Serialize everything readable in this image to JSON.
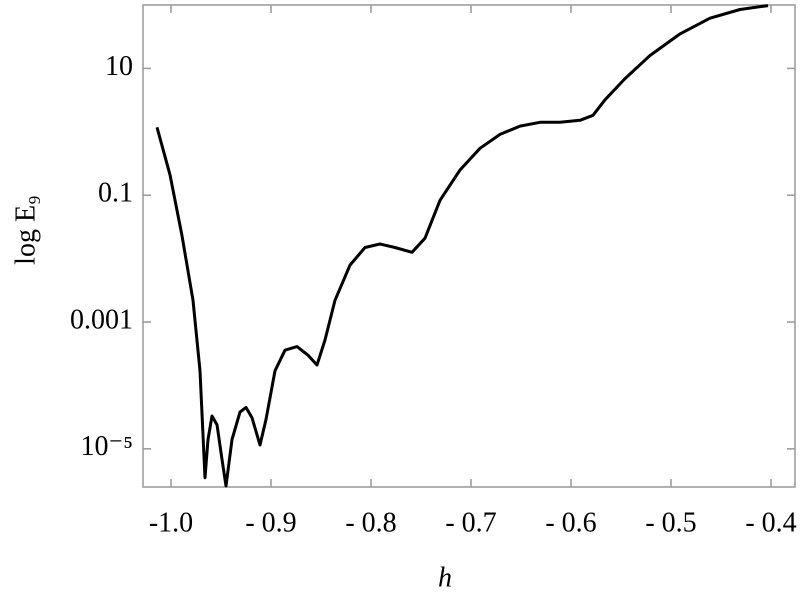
{
  "chart_data": {
    "type": "line",
    "xlabel": "h",
    "ylabel": "log E₉",
    "yscale": "log",
    "color": "#000000",
    "x": [
      -1.014,
      -1.001,
      -0.989,
      -0.978,
      -0.971,
      -0.966,
      -0.963,
      -0.959,
      -0.954,
      -0.949,
      -0.945,
      -0.939,
      -0.931,
      -0.925,
      -0.919,
      -0.911,
      -0.905,
      -0.896,
      -0.886,
      -0.874,
      -0.863,
      -0.854,
      -0.846,
      -0.836,
      -0.821,
      -0.806,
      -0.791,
      -0.776,
      -0.759,
      -0.746,
      -0.731,
      -0.711,
      -0.691,
      -0.671,
      -0.651,
      -0.631,
      -0.611,
      -0.591,
      -0.578,
      -0.566,
      -0.546,
      -0.521,
      -0.491,
      -0.461,
      -0.431,
      -0.403
    ],
    "values": [
      1.18,
      0.21,
      0.023,
      0.0022,
      0.00017,
      3.5e-06,
      1.4e-05,
      3.3e-05,
      2.4e-05,
      6.8e-06,
      2.6e-06,
      1.4e-05,
      3.8e-05,
      4.5e-05,
      3.1e-05,
      1.15e-05,
      2.9e-05,
      0.00017,
      0.00036,
      0.00041,
      0.0003,
      0.00021,
      0.00052,
      0.0022,
      0.0079,
      0.015,
      0.017,
      0.015,
      0.0126,
      0.021,
      0.083,
      0.25,
      0.55,
      0.91,
      1.23,
      1.41,
      1.41,
      1.52,
      1.82,
      3.2,
      6.9,
      16,
      35,
      62,
      85,
      98
    ],
    "xlim": [
      -1.028,
      -0.376
    ],
    "xticks": [
      {
        "value": -1.0,
        "label": "-1.0"
      },
      {
        "value": -0.9,
        "label": "- 0.9"
      },
      {
        "value": -0.8,
        "label": "- 0.8"
      },
      {
        "value": -0.7,
        "label": "- 0.7"
      },
      {
        "value": -0.6,
        "label": "- 0.6"
      },
      {
        "value": -0.5,
        "label": "- 0.5"
      },
      {
        "value": -0.4,
        "label": "- 0.4"
      }
    ],
    "ylim": [
      2.5e-06,
      100
    ],
    "yticks": [
      {
        "value": 1e-05,
        "label": "10⁻⁵"
      },
      0.001,
      0.1,
      10
    ]
  }
}
